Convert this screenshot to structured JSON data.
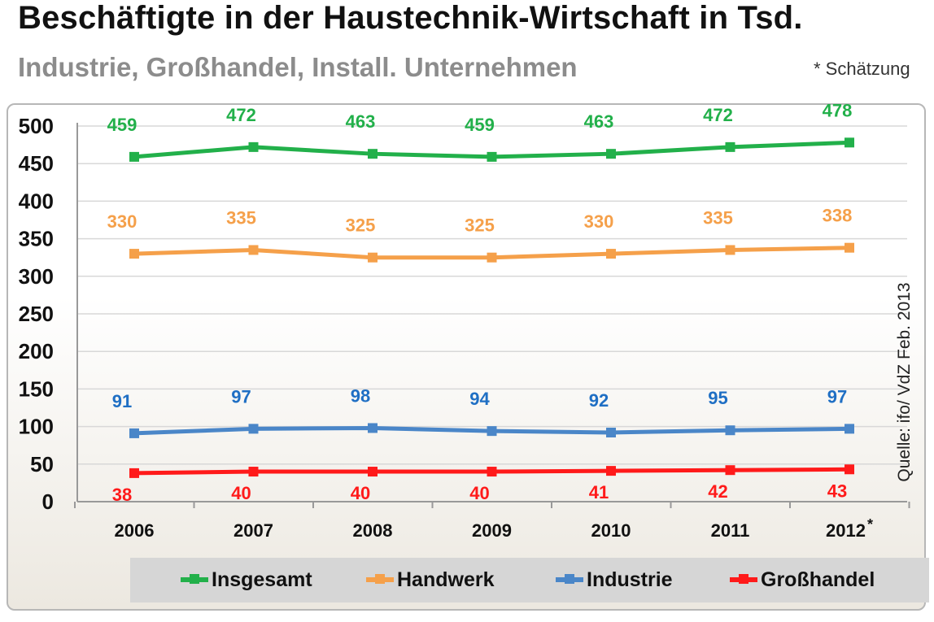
{
  "title": "Beschäftigte in der Haustechnik-Wirtschaft in Tsd.",
  "subtitle": "Industrie, Großhandel, Install. Unternehmen",
  "note": "* Schätzung",
  "source": "Quelle: ifo/ VdZ Feb. 2013",
  "chart_data": {
    "type": "line",
    "categories": [
      "2006",
      "2007",
      "2008",
      "2009",
      "2010",
      "2011",
      "2012*"
    ],
    "ylim": [
      0,
      500
    ],
    "yticks": [
      0,
      50,
      100,
      150,
      200,
      250,
      300,
      350,
      400,
      450,
      500
    ],
    "grid": true,
    "legend_position": "bottom",
    "series": [
      {
        "name": "Insgesamt",
        "color": "#22b04a",
        "values": [
          459,
          472,
          463,
          459,
          463,
          472,
          478
        ],
        "label_position": "above"
      },
      {
        "name": "Handwerk",
        "color": "#f5a04a",
        "values": [
          330,
          335,
          325,
          325,
          330,
          335,
          338
        ],
        "label_position": "above"
      },
      {
        "name": "Industrie",
        "color": "#4a86c8",
        "values": [
          91,
          97,
          98,
          94,
          92,
          95,
          97
        ],
        "label_position": "above",
        "label_color": "#1f6fc4"
      },
      {
        "name": "Großhandel",
        "color": "#ff1a1a",
        "values": [
          38,
          40,
          40,
          40,
          41,
          42,
          43
        ],
        "label_position": "below"
      }
    ]
  }
}
